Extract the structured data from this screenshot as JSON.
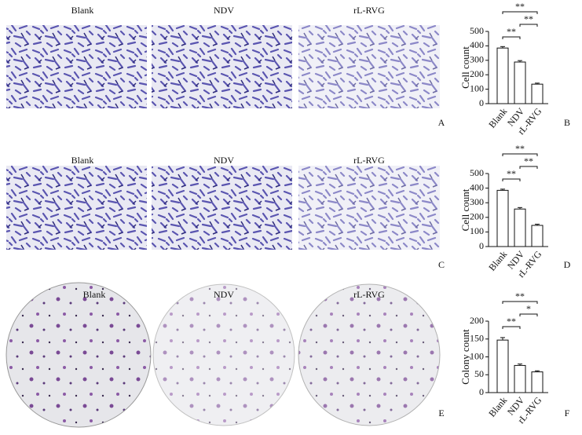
{
  "image_rows": [
    {
      "labels": [
        "Blank",
        "NDV",
        "rL-RVG"
      ],
      "panel": "A"
    },
    {
      "labels": [
        "Blank",
        "NDV",
        "rL-RVG"
      ],
      "panel": "C"
    },
    {
      "labels": [
        "Blank",
        "NDV",
        "rL-RVG"
      ],
      "panel": "E"
    }
  ],
  "chart_data": [
    {
      "type": "bar",
      "panel": "B",
      "ylabel": "Cell count",
      "categories": [
        "Blank",
        "NDV",
        "rL-RVG"
      ],
      "values": [
        385,
        288,
        135
      ],
      "errors": [
        10,
        10,
        7
      ],
      "color": "#ffffff",
      "ylim": [
        0,
        500
      ],
      "yticks": [
        0,
        100,
        200,
        300,
        400,
        500
      ],
      "annotations": [
        "**",
        "**",
        "**"
      ]
    },
    {
      "type": "bar",
      "panel": "D",
      "ylabel": "Cell count",
      "categories": [
        "Blank",
        "NDV",
        "rL-RVG"
      ],
      "values": [
        385,
        257,
        145
      ],
      "errors": [
        8,
        10,
        8
      ],
      "color": "#ffffff",
      "ylim": [
        0,
        500
      ],
      "yticks": [
        0,
        100,
        200,
        300,
        400,
        500
      ],
      "annotations": [
        "**",
        "**",
        "**"
      ]
    },
    {
      "type": "bar",
      "panel": "F",
      "ylabel": "Colony count",
      "categories": [
        "Blank",
        "NDV",
        "rL-RVG"
      ],
      "values": [
        147,
        76,
        58
      ],
      "errors": [
        7,
        4,
        3
      ],
      "color": "#ffffff",
      "ylim": [
        0,
        200
      ],
      "yticks": [
        0,
        50,
        100,
        150,
        200
      ],
      "annotations": [
        "**",
        "*",
        "**"
      ]
    }
  ]
}
